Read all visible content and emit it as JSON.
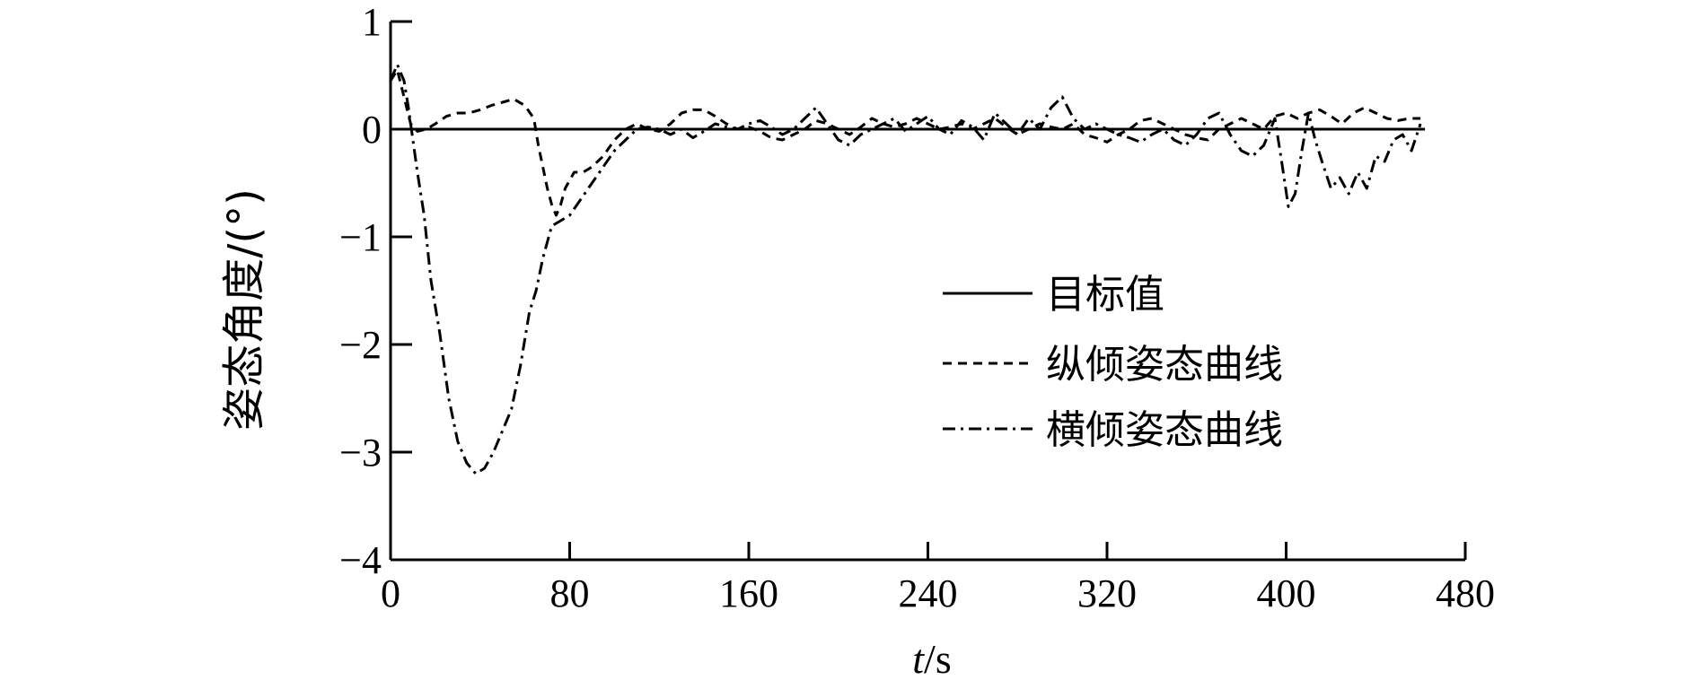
{
  "chart_data": {
    "type": "line",
    "title": "",
    "xlabel_var": "t",
    "xlabel_unit": "/s",
    "ylabel": "姿态角度/(°)",
    "xlim": [
      0,
      480
    ],
    "ylim": [
      -4,
      1
    ],
    "xticks": [
      0,
      80,
      160,
      240,
      320,
      400,
      480
    ],
    "yticks": [
      1,
      0,
      -1,
      -2,
      -3,
      -4
    ],
    "ytick_labels": [
      "1",
      "0",
      "−1",
      "−2",
      "−3",
      "−4"
    ],
    "grid": false,
    "legend_position": "center-right",
    "series": [
      {
        "name": "目标值",
        "style": "solid",
        "x": [
          0,
          462
        ],
        "y": [
          0,
          0
        ]
      },
      {
        "name": "纵倾姿态曲线",
        "style": "dashed",
        "x": [
          0,
          3,
          6,
          9,
          12,
          16,
          20,
          25,
          30,
          35,
          40,
          45,
          50,
          55,
          60,
          64,
          66,
          68,
          70,
          72,
          74,
          76,
          78,
          82,
          86,
          90,
          95,
          100,
          105,
          110,
          115,
          120,
          125,
          130,
          135,
          140,
          145,
          150,
          155,
          160,
          165,
          170,
          175,
          180,
          185,
          190,
          195,
          200,
          205,
          210,
          215,
          220,
          225,
          230,
          235,
          240,
          245,
          250,
          255,
          260,
          265,
          270,
          275,
          280,
          285,
          290,
          295,
          300,
          305,
          310,
          315,
          320,
          325,
          330,
          335,
          340,
          345,
          350,
          355,
          360,
          365,
          370,
          375,
          380,
          385,
          390,
          395,
          400,
          405,
          410,
          415,
          420,
          425,
          430,
          435,
          440,
          445,
          450,
          455,
          460
        ],
        "y": [
          0.45,
          0.55,
          0.3,
          0.05,
          -0.02,
          0.0,
          0.05,
          0.12,
          0.15,
          0.15,
          0.18,
          0.22,
          0.25,
          0.28,
          0.22,
          0.1,
          -0.15,
          -0.35,
          -0.55,
          -0.7,
          -0.8,
          -0.7,
          -0.55,
          -0.4,
          -0.4,
          -0.35,
          -0.25,
          -0.1,
          0.0,
          0.05,
          0.0,
          -0.02,
          0.05,
          0.15,
          0.18,
          0.18,
          0.12,
          0.05,
          0.0,
          0.02,
          -0.02,
          -0.08,
          -0.1,
          -0.05,
          0.0,
          0.08,
          0.05,
          0.0,
          -0.05,
          0.02,
          0.1,
          0.05,
          0.02,
          0.05,
          0.1,
          0.05,
          0.0,
          0.02,
          0.05,
          0.0,
          0.05,
          0.1,
          0.02,
          -0.05,
          0.0,
          0.05,
          0.02,
          0.0,
          0.05,
          -0.05,
          -0.08,
          -0.12,
          -0.05,
          0.0,
          0.08,
          0.1,
          0.05,
          0.0,
          -0.05,
          -0.08,
          -0.1,
          0.0,
          0.05,
          0.1,
          0.05,
          0.0,
          0.12,
          0.15,
          0.1,
          0.15,
          0.18,
          0.12,
          0.05,
          0.15,
          0.2,
          0.15,
          0.1,
          0.08,
          0.1,
          0.1
        ]
      },
      {
        "name": "横倾姿态曲线",
        "style": "dashdot",
        "x": [
          0,
          3,
          6,
          8,
          10,
          12,
          15,
          18,
          22,
          26,
          30,
          34,
          38,
          42,
          46,
          50,
          54,
          58,
          62,
          65,
          68,
          72,
          76,
          80,
          85,
          90,
          95,
          100,
          105,
          110,
          115,
          120,
          125,
          130,
          135,
          140,
          145,
          150,
          155,
          160,
          165,
          170,
          175,
          180,
          185,
          190,
          195,
          200,
          205,
          210,
          215,
          220,
          225,
          230,
          235,
          240,
          245,
          250,
          255,
          260,
          265,
          270,
          275,
          280,
          285,
          290,
          295,
          300,
          305,
          310,
          315,
          320,
          325,
          330,
          335,
          340,
          345,
          350,
          355,
          360,
          365,
          370,
          375,
          380,
          385,
          390,
          395,
          398,
          401,
          404,
          407,
          410,
          413,
          416,
          420,
          424,
          428,
          432,
          436,
          440,
          444,
          448,
          452,
          456,
          460
        ],
        "y": [
          0.45,
          0.6,
          0.45,
          0.2,
          -0.1,
          -0.4,
          -0.8,
          -1.4,
          -1.9,
          -2.5,
          -2.9,
          -3.1,
          -3.2,
          -3.15,
          -3.0,
          -2.8,
          -2.6,
          -2.2,
          -1.7,
          -1.5,
          -1.2,
          -0.9,
          -0.85,
          -0.8,
          -0.65,
          -0.5,
          -0.35,
          -0.2,
          -0.1,
          0.0,
          0.02,
          0.0,
          -0.05,
          0.0,
          -0.08,
          -0.02,
          0.05,
          0.02,
          0.0,
          0.05,
          0.08,
          0.02,
          -0.05,
          0.0,
          0.1,
          0.2,
          0.05,
          -0.1,
          -0.15,
          -0.05,
          0.0,
          0.05,
          0.1,
          -0.02,
          0.05,
          0.12,
          0.0,
          -0.05,
          0.08,
          0.02,
          -0.1,
          0.15,
          0.05,
          -0.05,
          0.1,
          0.0,
          0.2,
          0.3,
          0.1,
          0.0,
          0.05,
          0.0,
          -0.05,
          -0.08,
          -0.12,
          -0.05,
          0.0,
          -0.1,
          -0.15,
          -0.05,
          0.1,
          0.15,
          -0.05,
          -0.2,
          -0.25,
          -0.15,
          0.1,
          -0.3,
          -0.72,
          -0.6,
          -0.2,
          0.15,
          -0.1,
          -0.3,
          -0.55,
          -0.45,
          -0.6,
          -0.4,
          -0.55,
          -0.25,
          -0.3,
          -0.1,
          -0.05,
          -0.2,
          0.05
        ]
      }
    ]
  }
}
